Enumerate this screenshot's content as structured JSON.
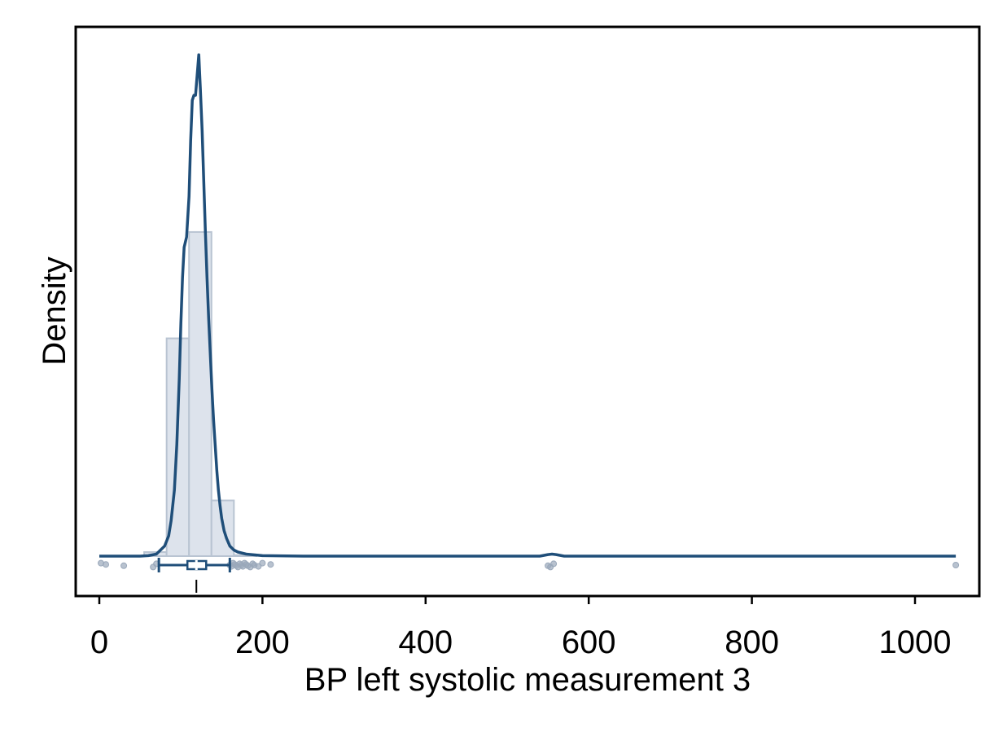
{
  "chart_data": {
    "type": "histogram",
    "xlabel": "BP left systolic measurement 3",
    "ylabel": "Density",
    "xlim": [
      -30,
      1080
    ],
    "ylim": [
      0,
      1.0
    ],
    "x_ticks": [
      0,
      200,
      400,
      600,
      800,
      1000
    ],
    "grid": false,
    "histogram": {
      "bin_width": 27.5,
      "bins": [
        {
          "x0": 55,
          "x1": 82.5,
          "density": 0.008
        },
        {
          "x0": 82.5,
          "x1": 110,
          "density": 0.43
        },
        {
          "x0": 110,
          "x1": 137.5,
          "density": 0.64
        },
        {
          "x0": 137.5,
          "x1": 165,
          "density": 0.11
        },
        {
          "x0": 165,
          "x1": 192.5,
          "density": 0.002
        }
      ]
    },
    "kde": {
      "x": [
        0,
        50,
        60,
        70,
        80,
        85,
        88,
        92,
        95,
        98,
        100,
        102,
        104,
        107,
        110,
        112,
        114,
        116,
        118,
        120,
        122,
        124,
        126,
        128,
        130,
        132,
        134,
        136,
        138,
        140,
        142,
        144,
        146,
        148,
        150,
        153,
        156,
        160,
        165,
        170,
        180,
        200,
        250,
        400,
        540,
        550,
        555,
        560,
        570,
        700,
        1050
      ],
      "y": [
        0.0,
        0.0,
        0.001,
        0.004,
        0.02,
        0.04,
        0.07,
        0.13,
        0.22,
        0.35,
        0.46,
        0.55,
        0.61,
        0.63,
        0.71,
        0.82,
        0.9,
        0.91,
        0.91,
        0.95,
        0.99,
        0.92,
        0.84,
        0.74,
        0.64,
        0.55,
        0.47,
        0.4,
        0.33,
        0.27,
        0.22,
        0.17,
        0.13,
        0.1,
        0.075,
        0.05,
        0.035,
        0.02,
        0.012,
        0.008,
        0.004,
        0.001,
        0.0,
        0.0,
        0.0,
        0.003,
        0.004,
        0.003,
        0.0,
        0.0,
        0.0
      ]
    },
    "boxplot": {
      "whisker_low": 73,
      "q1": 108,
      "median": 119,
      "q3": 131,
      "whisker_high": 160,
      "outliers": [
        2,
        8,
        30,
        66,
        70,
        160,
        162,
        164,
        166,
        168,
        170,
        172,
        174,
        176,
        178,
        180,
        182,
        185,
        188,
        190,
        195,
        200,
        210,
        550,
        553,
        557,
        1050
      ]
    },
    "colors": {
      "line": "#1f4e79",
      "bar_fill": "#dde3ec",
      "bar_stroke": "#b9c4d2",
      "outlier": "#9aa8ba"
    }
  }
}
